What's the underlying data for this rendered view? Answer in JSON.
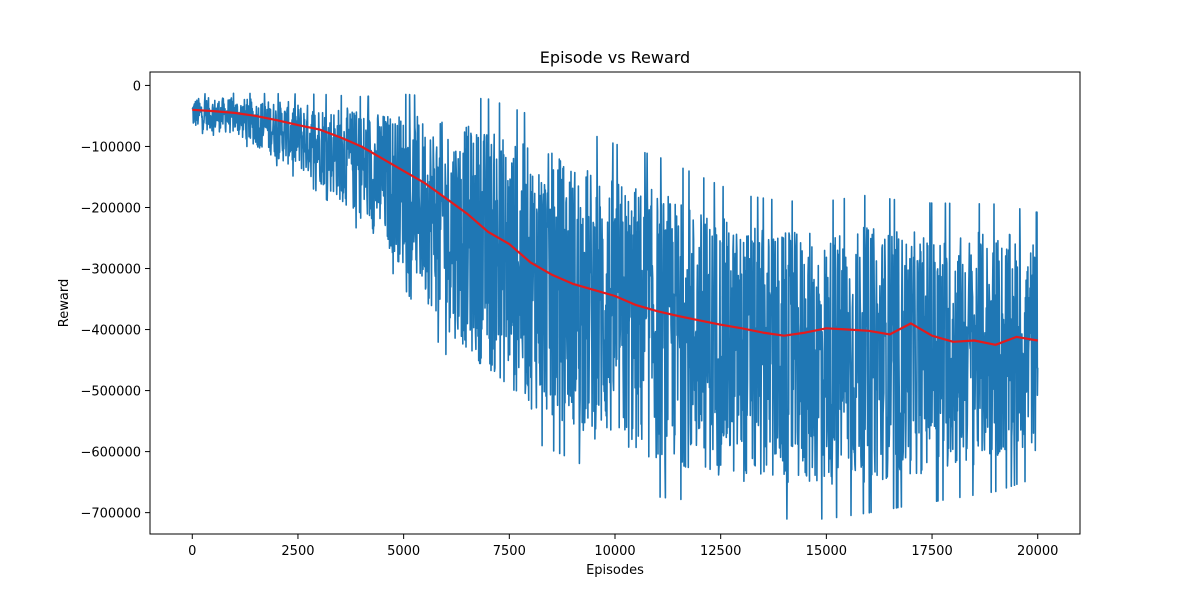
{
  "chart_data": {
    "type": "line",
    "title": "Episode vs Reward",
    "xlabel": "Episodes",
    "ylabel": "Reward",
    "xlim": [
      -1000,
      21000
    ],
    "ylim": [
      -735000,
      22000
    ],
    "xticks": [
      0,
      2500,
      5000,
      7500,
      10000,
      12500,
      15000,
      17500,
      20000
    ],
    "xtick_labels": [
      "0",
      "2500",
      "5000",
      "7500",
      "10000",
      "12500",
      "15000",
      "17500",
      "20000"
    ],
    "yticks": [
      0,
      -100000,
      -200000,
      -300000,
      -400000,
      -500000,
      -600000,
      -700000
    ],
    "ytick_labels": [
      "0",
      "−100000",
      "−200000",
      "−300000",
      "−400000",
      "−500000",
      "−600000",
      "−700000"
    ],
    "grid": false,
    "legend": "none",
    "series": [
      {
        "color": "#1f77b4",
        "style": "noisy",
        "envelope": {
          "x": [
            0,
            1000,
            2000,
            3000,
            4000,
            5000,
            6000,
            7000,
            8000,
            9000,
            10000,
            11000,
            12000,
            13000,
            14000,
            15000,
            16000,
            17000,
            18000,
            19000,
            20000
          ],
          "upper": [
            -20000,
            -20000,
            -25000,
            -30000,
            -40000,
            -45000,
            -60000,
            -70000,
            -100000,
            -120000,
            -150000,
            -170000,
            -200000,
            -230000,
            -240000,
            -240000,
            -230000,
            -240000,
            -240000,
            -240000,
            -250000
          ],
          "lower": [
            -70000,
            -80000,
            -120000,
            -160000,
            -220000,
            -300000,
            -400000,
            -470000,
            -530000,
            -560000,
            -600000,
            -620000,
            -630000,
            -650000,
            -660000,
            -660000,
            -650000,
            -640000,
            -630000,
            -620000,
            -600000
          ]
        }
      },
      {
        "color": "#e41a1c",
        "style": "line",
        "x": [
          0,
          500,
          1000,
          1500,
          2000,
          2500,
          3000,
          3500,
          4000,
          4500,
          5000,
          5500,
          6000,
          6500,
          7000,
          7500,
          8000,
          8500,
          9000,
          9500,
          10000,
          10500,
          11000,
          11500,
          12000,
          12500,
          13000,
          13500,
          14000,
          14500,
          15000,
          15500,
          16000,
          16500,
          17000,
          17500,
          18000,
          18500,
          19000,
          19500,
          20000
        ],
        "y": [
          -40000,
          -42000,
          -45000,
          -50000,
          -57000,
          -65000,
          -72000,
          -85000,
          -100000,
          -120000,
          -140000,
          -160000,
          -185000,
          -210000,
          -240000,
          -260000,
          -290000,
          -310000,
          -325000,
          -335000,
          -345000,
          -360000,
          -370000,
          -378000,
          -385000,
          -392000,
          -398000,
          -405000,
          -410000,
          -405000,
          -398000,
          -400000,
          -402000,
          -408000,
          -390000,
          -410000,
          -420000,
          -418000,
          -425000,
          -412000,
          -418000
        ]
      }
    ]
  }
}
